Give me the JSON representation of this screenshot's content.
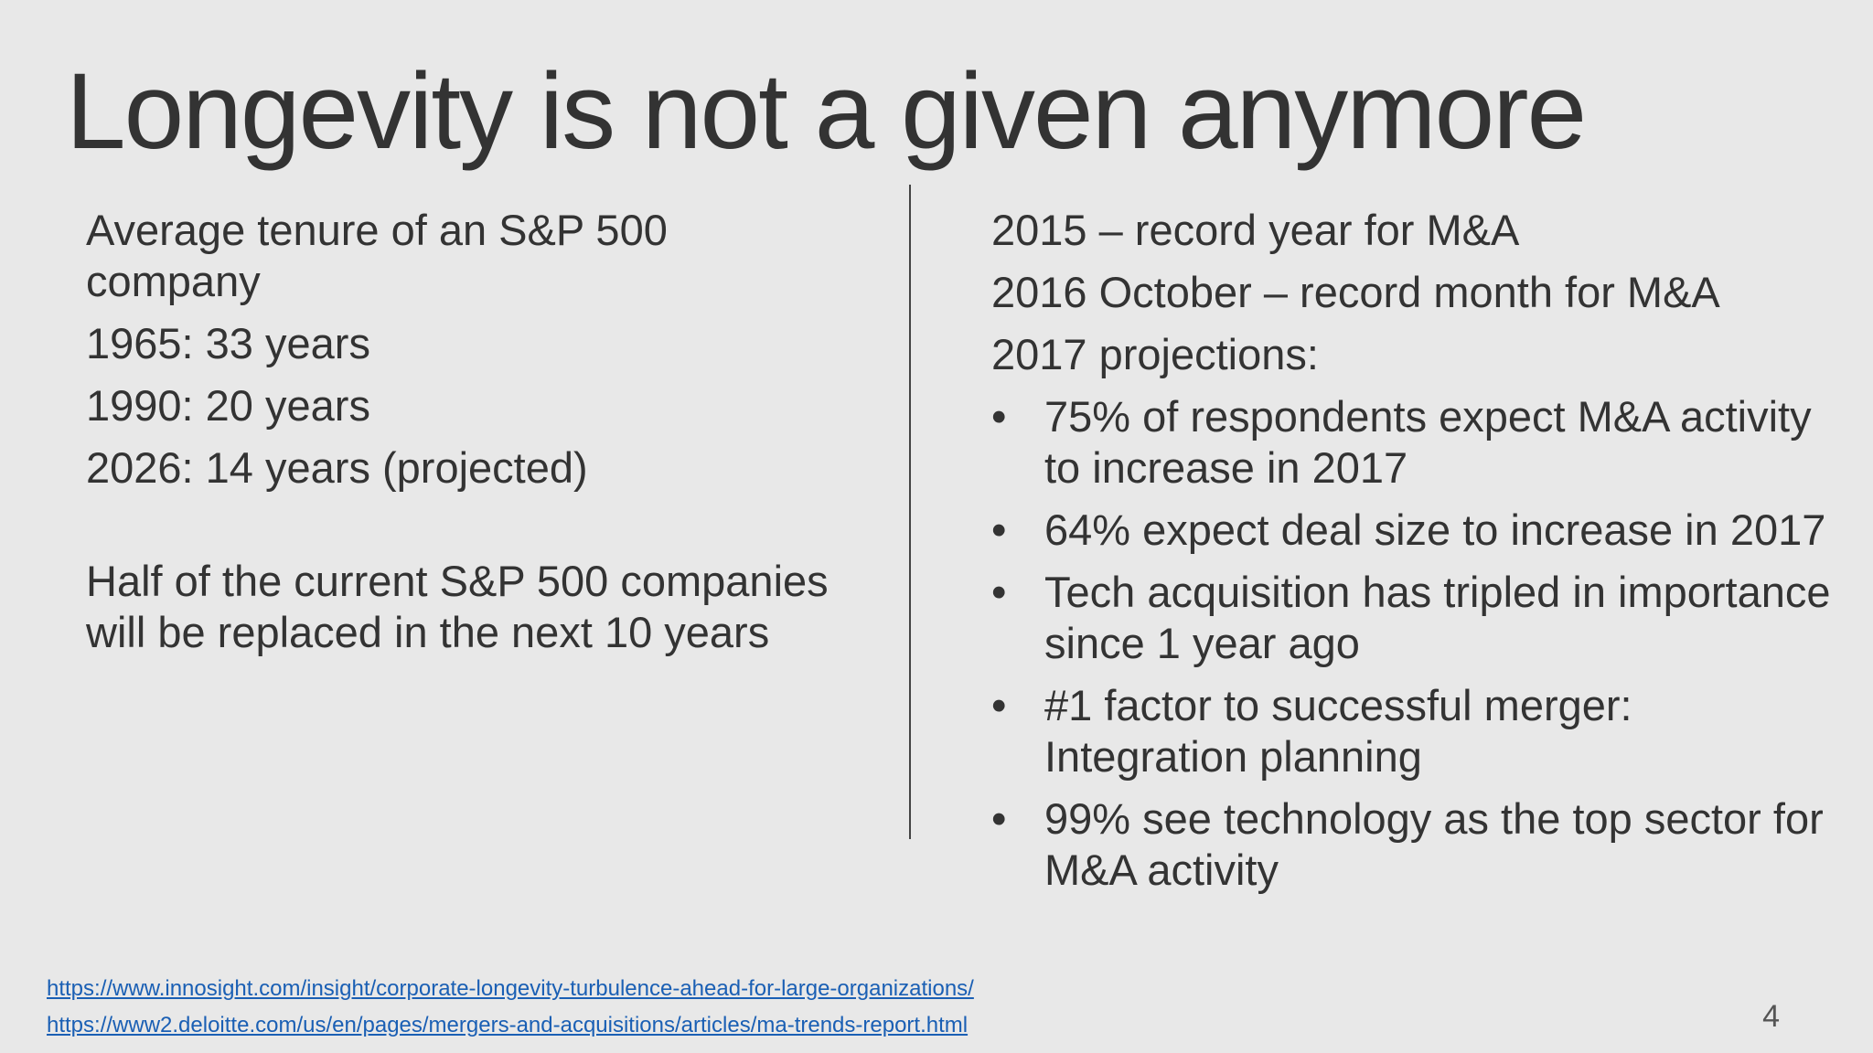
{
  "slide": {
    "title": "Longevity is not a given anymore",
    "left": {
      "paragraphs": [
        "Average tenure of an S&P 500 company",
        "1965: 33 years",
        "1990: 20 years",
        "2026: 14 years (projected)"
      ],
      "note": "Half of the current S&P 500 companies will be replaced in the next 10 years"
    },
    "right": {
      "paragraphs": [
        "2015 – record year for M&A",
        "2016 October – record month for M&A",
        "2017 projections:"
      ],
      "bullet_glyph": "•",
      "bullets": [
        "75% of respondents expect M&A activity to increase in 2017",
        "64% expect deal size to increase in 2017",
        "Tech acquisition has tripled in importance since 1 year ago",
        "#1 factor to successful merger: Integration planning",
        "99% see technology as the top sector for M&A activity"
      ]
    },
    "links": [
      "https://www.innosight.com/insight/corporate-longevity-turbulence-ahead-for-large-organizations/",
      "https://www2.deloitte.com/us/en/pages/mergers-and-acquisitions/articles/ma-trends-report.html"
    ],
    "page_number": "4"
  }
}
